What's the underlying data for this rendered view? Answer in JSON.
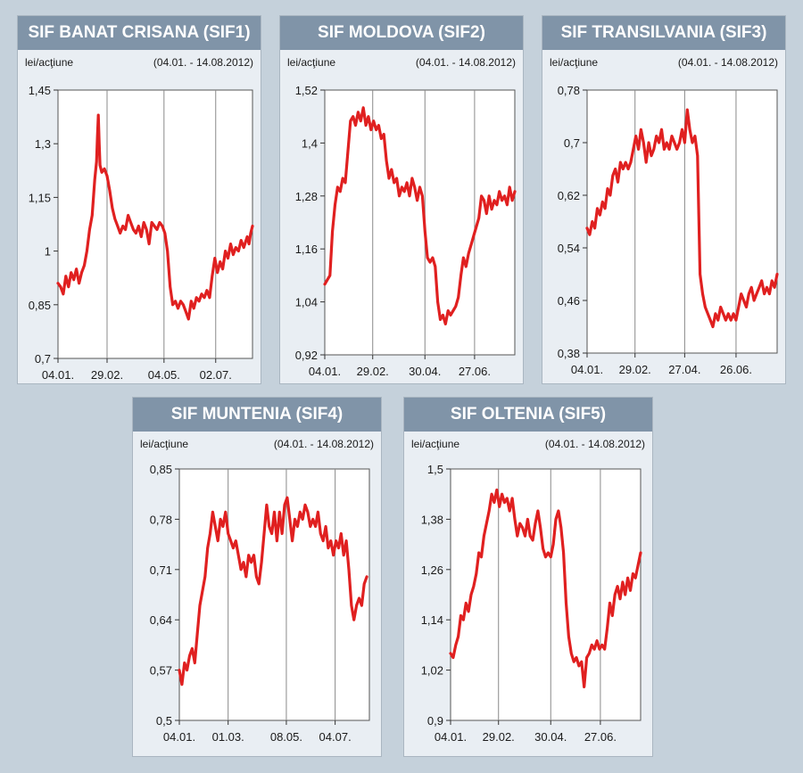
{
  "chart_data": [
    {
      "type": "line",
      "title": "SIF BANAT CRISANA (SIF1)",
      "ylabel": "lei/acţiune",
      "period": "(04.01. - 14.08.2012)",
      "y_ticks": [
        "1,45",
        "1,3",
        "1,15",
        "1",
        "0,85",
        "0,7"
      ],
      "x_ticks": [
        "04.01.",
        "29.02.",
        "04.05.",
        "02.07."
      ],
      "ylim": [
        0.7,
        1.45
      ],
      "grid": true,
      "color": "#e02020",
      "x_tick_days": [
        0,
        56,
        121,
        180
      ],
      "series": [
        {
          "x": [
            0,
            3,
            6,
            9,
            12,
            15,
            18,
            21,
            24,
            27,
            30,
            33,
            36,
            39,
            42,
            44,
            45,
            46,
            47,
            48,
            50,
            53,
            56,
            59,
            62,
            65,
            68,
            71,
            74,
            77,
            80,
            83,
            86,
            89,
            92,
            95,
            98,
            101,
            104,
            107,
            110,
            113,
            116,
            119,
            122,
            125,
            128,
            131,
            134,
            137,
            140,
            143,
            146,
            149,
            152,
            155,
            158,
            161,
            164,
            167,
            170,
            173,
            176,
            179,
            182,
            185,
            188,
            191,
            194,
            197,
            200,
            203,
            206,
            209,
            212,
            216,
            218,
            220,
            222
          ],
          "values": [
            0.91,
            0.9,
            0.88,
            0.93,
            0.9,
            0.94,
            0.92,
            0.95,
            0.91,
            0.94,
            0.96,
            1.0,
            1.06,
            1.1,
            1.2,
            1.25,
            1.32,
            1.38,
            1.3,
            1.24,
            1.22,
            1.23,
            1.21,
            1.17,
            1.12,
            1.09,
            1.07,
            1.05,
            1.07,
            1.06,
            1.1,
            1.08,
            1.06,
            1.05,
            1.07,
            1.04,
            1.08,
            1.06,
            1.02,
            1.08,
            1.07,
            1.06,
            1.08,
            1.07,
            1.05,
            1.0,
            0.9,
            0.85,
            0.86,
            0.84,
            0.86,
            0.85,
            0.83,
            0.81,
            0.86,
            0.84,
            0.87,
            0.86,
            0.88,
            0.87,
            0.89,
            0.87,
            0.93,
            0.98,
            0.94,
            0.97,
            0.95,
            1.0,
            0.98,
            1.02,
            0.99,
            1.01,
            1.0,
            1.03,
            1.01,
            1.04,
            1.02,
            1.05,
            1.07
          ]
        }
      ]
    },
    {
      "type": "line",
      "title": "SIF MOLDOVA (SIF2)",
      "ylabel": "lei/acţiune",
      "period": "(04.01. - 14.08.2012)",
      "y_ticks": [
        "1,52",
        "1,4",
        "1,28",
        "1,16",
        "1,04",
        "0,92"
      ],
      "x_ticks": [
        "04.01.",
        "29.02.",
        "30.04.",
        "27.06."
      ],
      "ylim": [
        0.92,
        1.52
      ],
      "grid": true,
      "color": "#e02020",
      "x_tick_days": [
        0,
        56,
        117,
        175
      ],
      "series": [
        {
          "x": [
            0,
            3,
            6,
            9,
            12,
            15,
            18,
            21,
            24,
            27,
            30,
            33,
            36,
            39,
            42,
            45,
            48,
            51,
            54,
            57,
            60,
            63,
            66,
            69,
            72,
            75,
            78,
            81,
            84,
            87,
            90,
            93,
            96,
            99,
            102,
            105,
            108,
            111,
            114,
            117,
            120,
            123,
            126,
            129,
            132,
            135,
            138,
            141,
            144,
            147,
            150,
            153,
            156,
            159,
            162,
            165,
            168,
            171,
            174,
            177,
            180,
            183,
            186,
            189,
            192,
            195,
            198,
            201,
            204,
            207,
            210,
            213,
            216,
            219,
            222
          ],
          "values": [
            1.08,
            1.09,
            1.1,
            1.2,
            1.26,
            1.3,
            1.29,
            1.32,
            1.31,
            1.38,
            1.45,
            1.46,
            1.44,
            1.47,
            1.45,
            1.48,
            1.44,
            1.46,
            1.43,
            1.45,
            1.43,
            1.44,
            1.41,
            1.42,
            1.36,
            1.32,
            1.34,
            1.31,
            1.32,
            1.28,
            1.3,
            1.29,
            1.31,
            1.28,
            1.32,
            1.3,
            1.27,
            1.3,
            1.28,
            1.2,
            1.14,
            1.13,
            1.14,
            1.12,
            1.04,
            1.0,
            1.01,
            0.99,
            1.02,
            1.01,
            1.02,
            1.03,
            1.05,
            1.1,
            1.14,
            1.12,
            1.15,
            1.17,
            1.19,
            1.21,
            1.23,
            1.28,
            1.27,
            1.24,
            1.28,
            1.25,
            1.27,
            1.26,
            1.29,
            1.27,
            1.28,
            1.26,
            1.3,
            1.27,
            1.29
          ]
        }
      ]
    },
    {
      "type": "line",
      "title": "SIF TRANSILVANIA (SIF3)",
      "ylabel": "lei/acţiune",
      "period": "(04.01. - 14.08.2012)",
      "y_ticks": [
        "0,78",
        "0,7",
        "0,62",
        "0,54",
        "0,46",
        "0,38"
      ],
      "x_ticks": [
        "04.01.",
        "29.02.",
        "27.04.",
        "26.06."
      ],
      "ylim": [
        0.38,
        0.78
      ],
      "grid": true,
      "color": "#e02020",
      "x_tick_days": [
        0,
        56,
        114,
        174
      ],
      "series": [
        {
          "x": [
            0,
            3,
            6,
            9,
            12,
            15,
            18,
            21,
            24,
            27,
            30,
            33,
            36,
            39,
            42,
            45,
            48,
            51,
            54,
            57,
            60,
            63,
            66,
            69,
            72,
            75,
            78,
            81,
            84,
            87,
            90,
            93,
            96,
            99,
            102,
            105,
            108,
            111,
            114,
            117,
            120,
            123,
            126,
            129,
            132,
            135,
            138,
            141,
            144,
            147,
            150,
            153,
            156,
            159,
            162,
            165,
            168,
            171,
            174,
            177,
            180,
            183,
            186,
            189,
            192,
            195,
            198,
            201,
            204,
            207,
            210,
            213,
            216,
            219,
            222
          ],
          "values": [
            0.57,
            0.56,
            0.58,
            0.57,
            0.6,
            0.59,
            0.61,
            0.6,
            0.63,
            0.62,
            0.65,
            0.66,
            0.64,
            0.67,
            0.66,
            0.67,
            0.66,
            0.67,
            0.69,
            0.71,
            0.69,
            0.72,
            0.7,
            0.67,
            0.7,
            0.68,
            0.69,
            0.71,
            0.7,
            0.72,
            0.69,
            0.7,
            0.69,
            0.71,
            0.7,
            0.69,
            0.7,
            0.72,
            0.7,
            0.75,
            0.72,
            0.7,
            0.71,
            0.68,
            0.5,
            0.47,
            0.45,
            0.44,
            0.43,
            0.42,
            0.44,
            0.43,
            0.45,
            0.44,
            0.43,
            0.44,
            0.43,
            0.44,
            0.43,
            0.45,
            0.47,
            0.46,
            0.45,
            0.47,
            0.48,
            0.46,
            0.47,
            0.48,
            0.49,
            0.47,
            0.48,
            0.47,
            0.49,
            0.48,
            0.5
          ]
        }
      ]
    },
    {
      "type": "line",
      "title": "SIF MUNTENIA (SIF4)",
      "ylabel": "lei/acţiune",
      "period": "(04.01. - 14.08.2012)",
      "y_ticks": [
        "0,85",
        "0,78",
        "0,71",
        "0,64",
        "0,57",
        "0,5"
      ],
      "x_ticks": [
        "04.01.",
        "01.03.",
        "08.05.",
        "04.07."
      ],
      "ylim": [
        0.5,
        0.85
      ],
      "grid": true,
      "color": "#e02020",
      "x_tick_days": [
        0,
        57,
        125,
        182
      ],
      "series": [
        {
          "x": [
            0,
            3,
            6,
            9,
            12,
            15,
            18,
            21,
            24,
            27,
            30,
            33,
            36,
            39,
            42,
            45,
            48,
            51,
            54,
            57,
            60,
            63,
            66,
            69,
            72,
            75,
            78,
            81,
            84,
            87,
            90,
            93,
            96,
            99,
            102,
            105,
            108,
            111,
            114,
            117,
            120,
            123,
            126,
            129,
            132,
            135,
            138,
            141,
            144,
            147,
            150,
            153,
            156,
            159,
            162,
            165,
            168,
            171,
            174,
            177,
            180,
            183,
            186,
            189,
            192,
            195,
            198,
            201,
            204,
            207,
            210,
            213,
            216,
            219
          ],
          "values": [
            0.57,
            0.55,
            0.58,
            0.57,
            0.59,
            0.6,
            0.58,
            0.62,
            0.66,
            0.68,
            0.7,
            0.74,
            0.76,
            0.79,
            0.77,
            0.75,
            0.78,
            0.77,
            0.79,
            0.76,
            0.75,
            0.74,
            0.75,
            0.73,
            0.71,
            0.72,
            0.7,
            0.73,
            0.72,
            0.73,
            0.7,
            0.69,
            0.72,
            0.76,
            0.8,
            0.77,
            0.76,
            0.79,
            0.75,
            0.79,
            0.76,
            0.8,
            0.81,
            0.78,
            0.75,
            0.78,
            0.77,
            0.79,
            0.78,
            0.8,
            0.79,
            0.77,
            0.78,
            0.77,
            0.79,
            0.76,
            0.75,
            0.77,
            0.74,
            0.75,
            0.73,
            0.75,
            0.74,
            0.76,
            0.73,
            0.75,
            0.71,
            0.66,
            0.64,
            0.66,
            0.67,
            0.66,
            0.69,
            0.7
          ]
        }
      ]
    },
    {
      "type": "line",
      "title": "SIF OLTENIA (SIF5)",
      "ylabel": "lei/acţiune",
      "period": "(04.01. - 14.08.2012)",
      "y_ticks": [
        "1,5",
        "1,38",
        "1,26",
        "1,14",
        "1,02",
        "0,9"
      ],
      "x_ticks": [
        "04.01.",
        "29.02.",
        "30.04.",
        "27.06."
      ],
      "ylim": [
        0.9,
        1.5
      ],
      "grid": true,
      "color": "#e02020",
      "x_tick_days": [
        0,
        56,
        117,
        175
      ],
      "series": [
        {
          "x": [
            0,
            3,
            6,
            9,
            12,
            15,
            18,
            21,
            24,
            27,
            30,
            33,
            36,
            39,
            42,
            45,
            48,
            51,
            54,
            57,
            60,
            63,
            66,
            69,
            72,
            75,
            78,
            81,
            84,
            87,
            90,
            93,
            96,
            99,
            102,
            105,
            108,
            111,
            114,
            117,
            120,
            123,
            126,
            129,
            132,
            135,
            138,
            141,
            144,
            147,
            150,
            153,
            156,
            159,
            162,
            165,
            168,
            171,
            174,
            177,
            180,
            183,
            186,
            189,
            192,
            195,
            198,
            201,
            204,
            207,
            210,
            213,
            216,
            219,
            222
          ],
          "values": [
            1.06,
            1.05,
            1.08,
            1.1,
            1.15,
            1.14,
            1.18,
            1.16,
            1.2,
            1.22,
            1.25,
            1.3,
            1.29,
            1.34,
            1.37,
            1.4,
            1.44,
            1.42,
            1.45,
            1.41,
            1.44,
            1.42,
            1.43,
            1.4,
            1.43,
            1.38,
            1.34,
            1.37,
            1.36,
            1.34,
            1.38,
            1.34,
            1.33,
            1.37,
            1.4,
            1.36,
            1.31,
            1.29,
            1.3,
            1.29,
            1.32,
            1.38,
            1.4,
            1.36,
            1.3,
            1.18,
            1.1,
            1.06,
            1.04,
            1.05,
            1.03,
            1.04,
            0.98,
            1.05,
            1.06,
            1.08,
            1.07,
            1.09,
            1.07,
            1.08,
            1.07,
            1.12,
            1.18,
            1.15,
            1.2,
            1.22,
            1.19,
            1.23,
            1.2,
            1.24,
            1.21,
            1.25,
            1.24,
            1.27,
            1.3
          ]
        }
      ]
    }
  ]
}
